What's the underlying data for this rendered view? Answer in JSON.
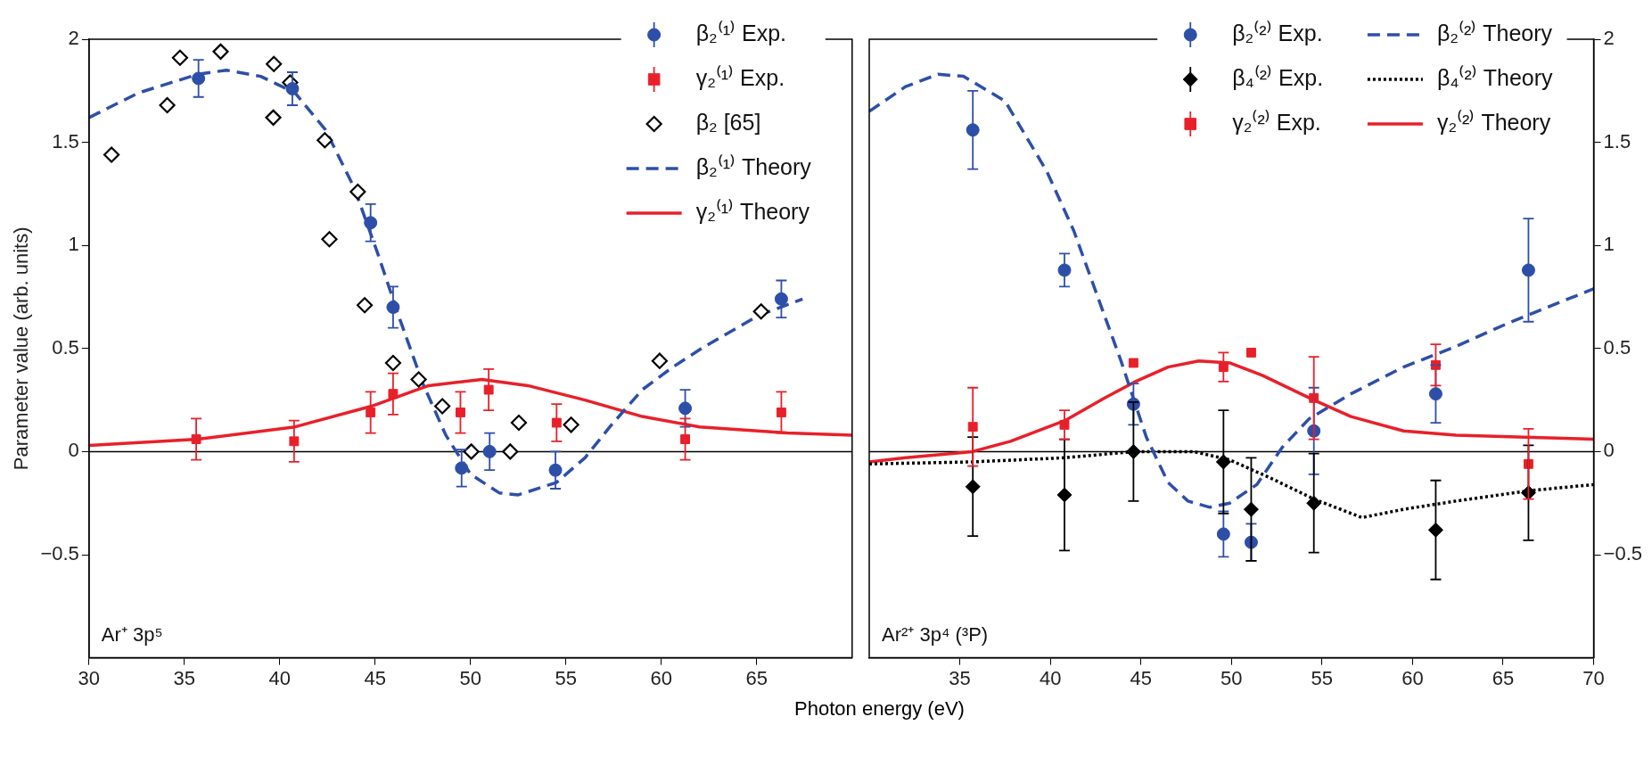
{
  "chart_data": [
    {
      "type": "scatter",
      "ylabel": "Parameter value (arb. units)",
      "xlabel": "Photon energy (eV)",
      "xlim": [
        30,
        70
      ],
      "xticks": [
        30,
        35,
        40,
        45,
        50,
        55,
        60,
        65
      ],
      "ylim": [
        -1,
        2
      ],
      "yticks": [
        -0.5,
        0,
        0.5,
        1,
        1.5,
        2
      ],
      "grid": false,
      "legend": "top right",
      "annotations": [
        "Ar⁺ 3p⁵"
      ],
      "ref_lines": [
        {
          "axis": "y",
          "value": 0,
          "color": "#000000"
        }
      ],
      "series": [
        {
          "name": "β₂⁽¹⁾ Exp.",
          "marker": "circle",
          "color": "#2e4fa8",
          "x": [
            35.74,
            40.66,
            44.76,
            45.94,
            49.53,
            51.0,
            54.45,
            61.25,
            66.29
          ],
          "values": [
            1.81,
            1.76,
            1.11,
            0.7,
            -0.08,
            0.0,
            -0.09,
            0.21,
            0.74
          ],
          "errors": [
            0.09,
            0.08,
            0.09,
            0.1,
            0.09,
            0.09,
            0.09,
            0.09,
            0.09
          ]
        },
        {
          "name": "γ₂⁽¹⁾ Exp.",
          "marker": "square",
          "color": "#e8202a",
          "x": [
            35.62,
            40.75,
            44.76,
            45.94,
            49.47,
            50.95,
            54.51,
            61.25,
            66.29
          ],
          "values": [
            0.06,
            0.05,
            0.19,
            0.28,
            0.19,
            0.3,
            0.14,
            0.06,
            0.19
          ],
          "errors": [
            0.1,
            0.1,
            0.1,
            0.1,
            0.1,
            0.1,
            0.09,
            0.1,
            0.1
          ]
        },
        {
          "name": "β₂ [65]",
          "marker": "diamond",
          "color": "#000000",
          "x": [
            31.18,
            34.1,
            34.77,
            36.9,
            39.66,
            39.69,
            40.54,
            42.36,
            44.09,
            42.6,
            44.45,
            45.94,
            47.28,
            48.52,
            50.04,
            52.08,
            52.53,
            55.27,
            59.91,
            65.23
          ],
          "values": [
            1.44,
            1.68,
            1.91,
            1.94,
            1.62,
            1.88,
            1.79,
            1.51,
            1.26,
            1.03,
            0.71,
            0.43,
            0.35,
            0.22,
            0.0,
            0.0,
            0.14,
            0.13,
            0.44,
            0.68
          ]
        },
        {
          "name": "β₂⁽¹⁾ Theory",
          "type": "line",
          "line_style": "dashed",
          "color": "#2e4fa8",
          "x": [
            30,
            32.6,
            35.7,
            37.2,
            39,
            40.8,
            42.4,
            43.9,
            45.1,
            46.3,
            47.5,
            48.7,
            50,
            51.5,
            52.5,
            54.5,
            56,
            57.3,
            59,
            60.6,
            62.1,
            65.1,
            67.4
          ],
          "values": [
            1.62,
            1.74,
            1.83,
            1.85,
            1.82,
            1.74,
            1.56,
            1.28,
            0.97,
            0.64,
            0.33,
            0.08,
            -0.11,
            -0.2,
            -0.21,
            -0.15,
            -0.03,
            0.12,
            0.3,
            0.41,
            0.5,
            0.66,
            0.74
          ]
        },
        {
          "name": "γ₂⁽¹⁾ Theory",
          "type": "line",
          "line_style": "solid",
          "color": "#e8202a",
          "x": [
            30,
            35.7,
            40.8,
            44.8,
            47.8,
            50.6,
            53,
            56,
            59,
            62,
            66.6,
            70
          ],
          "values": [
            0.03,
            0.06,
            0.12,
            0.22,
            0.32,
            0.35,
            0.32,
            0.25,
            0.17,
            0.12,
            0.09,
            0.08
          ]
        }
      ]
    },
    {
      "type": "scatter",
      "xlim": [
        30,
        70
      ],
      "xticks": [
        35,
        40,
        45,
        50,
        55,
        60,
        65,
        70
      ],
      "y2lim": [
        -1,
        2
      ],
      "y2ticks": [
        -0.5,
        0,
        0.5,
        1,
        1.5,
        2
      ],
      "grid": false,
      "legend": "top right",
      "annotations": [
        "Ar²⁺ 3p⁴ (³P)"
      ],
      "ref_lines": [
        {
          "axis": "y2",
          "value": 0,
          "color": "#000000"
        }
      ],
      "series": [
        {
          "name": "β₂⁽²⁾ Exp.",
          "axis": "y2",
          "marker": "circle",
          "color": "#2e4fa8",
          "x": [
            35.72,
            40.78,
            44.59,
            49.56,
            51.09,
            54.55,
            61.28,
            66.4
          ],
          "values": [
            1.56,
            0.88,
            0.23,
            -0.4,
            -0.44,
            0.1,
            0.28,
            0.88
          ],
          "errors": [
            0.19,
            0.08,
            0.1,
            0.11,
            0.09,
            0.21,
            0.14,
            0.25
          ]
        },
        {
          "name": "β₂⁽²⁾ Theory",
          "type": "line",
          "axis": "y2",
          "line_style": "dashed",
          "color": "#2e4fa8",
          "x": [
            30,
            32,
            33.8,
            35.2,
            37.5,
            39.8,
            41.3,
            42.7,
            43.9,
            45.3,
            46.5,
            47.6,
            48.8,
            49.9,
            51.4,
            52.8,
            54.3,
            56.6,
            59.5,
            62.4,
            65.2,
            70
          ],
          "values": [
            1.65,
            1.77,
            1.83,
            1.82,
            1.7,
            1.36,
            1.07,
            0.73,
            0.44,
            0.07,
            -0.15,
            -0.24,
            -0.27,
            -0.25,
            -0.16,
            0.02,
            0.16,
            0.28,
            0.41,
            0.51,
            0.62,
            0.79
          ]
        },
        {
          "name": "β₄⁽²⁾ Exp.",
          "axis": "y2",
          "marker": "diamond",
          "color": "#000000",
          "x": [
            35.72,
            40.78,
            44.59,
            49.56,
            51.09,
            54.55,
            61.28,
            66.4
          ],
          "values": [
            -0.17,
            -0.21,
            0.0,
            -0.05,
            -0.28,
            -0.25,
            -0.38,
            -0.2
          ],
          "errors": [
            0.24,
            0.27,
            0.24,
            0.25,
            0.25,
            0.24,
            0.24,
            0.23
          ]
        },
        {
          "name": "β₄⁽²⁾ Theory",
          "type": "line",
          "axis": "y2",
          "line_style": "dotted",
          "color": "#000000",
          "x": [
            30,
            35.7,
            40.8,
            44.6,
            47.9,
            49.9,
            52.2,
            54.55,
            57.2,
            59.5,
            62.4,
            66.4,
            70
          ],
          "values": [
            -0.06,
            -0.05,
            -0.03,
            0.0,
            0.0,
            -0.04,
            -0.13,
            -0.23,
            -0.32,
            -0.28,
            -0.24,
            -0.19,
            -0.16
          ]
        },
        {
          "name": "γ₂⁽²⁾ Exp.",
          "axis": "y2",
          "marker": "square",
          "color": "#e8202a",
          "x": [
            35.72,
            40.78,
            44.59,
            49.56,
            51.09,
            54.55,
            61.28,
            66.4
          ],
          "values": [
            0.12,
            0.13,
            0.43,
            0.41,
            0.48,
            0.26,
            0.42,
            -0.06
          ],
          "errors": [
            0.19,
            0.07,
            null,
            0.07,
            null,
            0.2,
            0.1,
            0.17
          ]
        },
        {
          "name": "γ₂⁽²⁾ Theory",
          "type": "line",
          "axis": "y2",
          "line_style": "solid",
          "color": "#e8202a",
          "x": [
            30,
            32,
            35.7,
            37.8,
            40.8,
            43,
            44.7,
            46.5,
            48.2,
            49.9,
            51.7,
            54.55,
            56.6,
            59.5,
            62.4,
            70
          ],
          "values": [
            -0.05,
            -0.03,
            0.0,
            0.05,
            0.15,
            0.26,
            0.34,
            0.41,
            0.44,
            0.43,
            0.37,
            0.25,
            0.17,
            0.1,
            0.08,
            0.06
          ]
        }
      ]
    }
  ]
}
